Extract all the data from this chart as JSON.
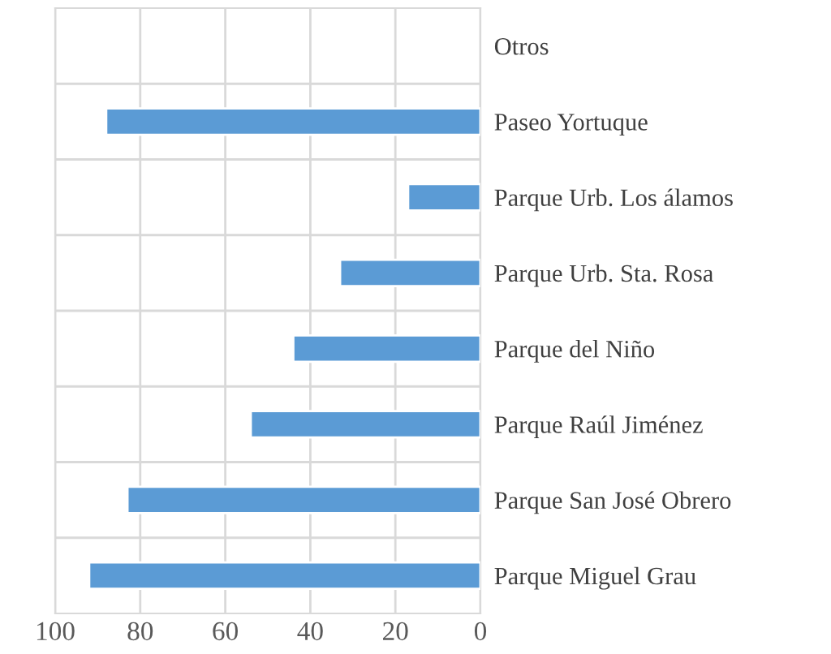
{
  "chart_data": {
    "type": "bar",
    "orientation": "horizontal",
    "categories": [
      "Otros",
      "Paseo Yortuque",
      "Parque Urb. Los álamos",
      "Parque Urb. Sta. Rosa",
      "Parque del Niño",
      "Parque Raúl Jiménez",
      "Parque San José Obrero",
      "Parque Miguel Grau"
    ],
    "values": [
      null,
      88,
      17,
      33,
      44,
      54,
      83,
      92
    ],
    "color": "#5b9bd5",
    "xlim": [
      100,
      0
    ],
    "xticks": [
      100,
      80,
      60,
      40,
      20,
      0
    ],
    "grid": true
  }
}
